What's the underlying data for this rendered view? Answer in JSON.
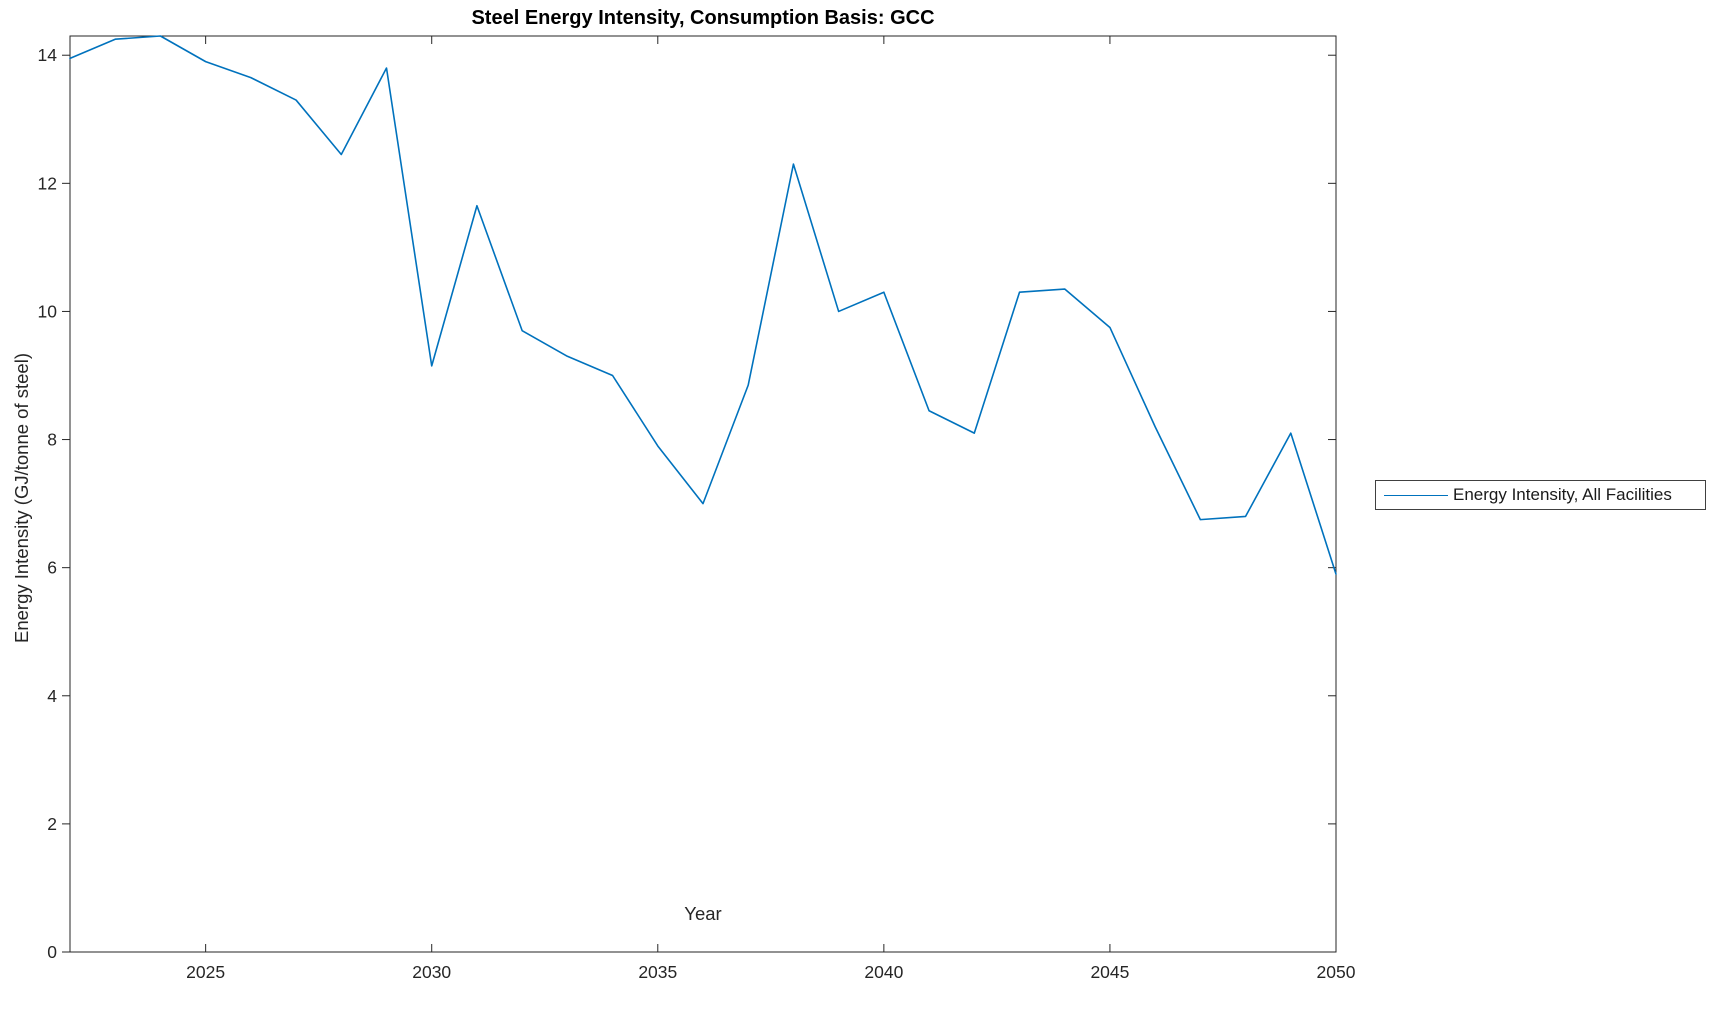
{
  "title": "Steel Energy Intensity, Consumption Basis: GCC",
  "x_axis_label": "Year",
  "y_axis_label": "Energy Intensity (GJ/tonne of steel)",
  "legend": {
    "label": "Energy Intensity, All Facilities",
    "position": "right-outside"
  },
  "colors": {
    "line": "#0072BD",
    "axis": "#262626",
    "tick_label": "#262626",
    "title": "#000000",
    "legend_border": "#404040"
  },
  "chart_data": {
    "type": "line",
    "title": "Steel Energy Intensity, Consumption Basis: GCC",
    "xlabel": "Year",
    "ylabel": "Energy Intensity (GJ/tonne of steel)",
    "x": [
      2022,
      2023,
      2024,
      2025,
      2026,
      2027,
      2028,
      2029,
      2030,
      2031,
      2032,
      2033,
      2034,
      2035,
      2036,
      2037,
      2038,
      2039,
      2040,
      2041,
      2042,
      2043,
      2044,
      2045,
      2046,
      2047,
      2048,
      2049,
      2050
    ],
    "series": [
      {
        "name": "Energy Intensity, All Facilities",
        "values": [
          13.95,
          14.25,
          14.3,
          13.9,
          13.65,
          13.3,
          12.45,
          13.8,
          9.15,
          11.65,
          9.7,
          9.3,
          9.0,
          7.9,
          7.0,
          8.85,
          12.3,
          10.0,
          10.3,
          8.45,
          8.1,
          10.3,
          10.35,
          9.75,
          8.2,
          6.75,
          6.8,
          8.1,
          5.9
        ]
      }
    ],
    "x_ticks": [
      2025,
      2030,
      2035,
      2040,
      2045,
      2050
    ],
    "y_ticks": [
      0,
      2,
      4,
      6,
      8,
      10,
      12,
      14
    ],
    "xlim": [
      2022,
      2050
    ],
    "ylim": [
      0,
      14.3
    ],
    "grid": false,
    "legend_position": "right-outside"
  }
}
